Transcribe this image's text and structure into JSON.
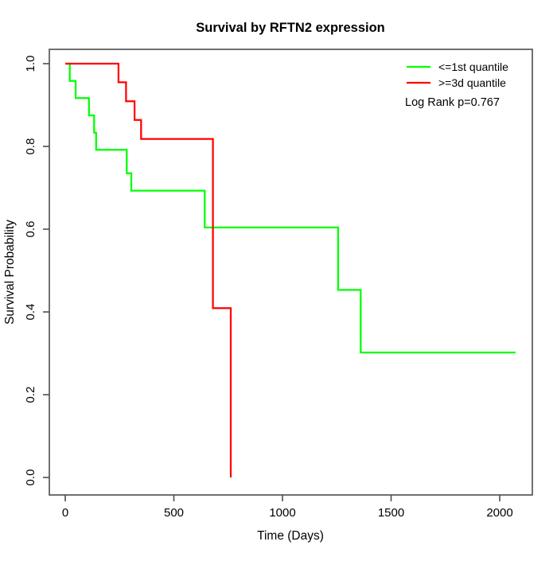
{
  "title": "Survival by RFTN2 expression",
  "chart_data": {
    "type": "line",
    "subtype": "kaplan-meier-step",
    "title": "Survival by RFTN2 expression",
    "xlabel": "Time (Days)",
    "ylabel": "Survival Probability",
    "xlim": [
      0,
      2073
    ],
    "ylim": [
      0.0,
      1.0
    ],
    "xticks": [
      0,
      500,
      1000,
      1500,
      2000
    ],
    "yticks": [
      0.0,
      0.2,
      0.4,
      0.6,
      0.8,
      1.0
    ],
    "grid": false,
    "legend_position": "top-right-inside",
    "annotation": "Log Rank p=0.767",
    "series": [
      {
        "name": "<=1st quantile",
        "color": "#00ff00",
        "points": [
          [
            0,
            1.0
          ],
          [
            21,
            0.958
          ],
          [
            48,
            0.917
          ],
          [
            109,
            0.875
          ],
          [
            133,
            0.833
          ],
          [
            142,
            0.792
          ],
          [
            283,
            0.735
          ],
          [
            304,
            0.693
          ],
          [
            642,
            0.604
          ],
          [
            1256,
            0.453
          ],
          [
            1360,
            0.302
          ],
          [
            2073,
            0.302
          ]
        ]
      },
      {
        "name": ">=3d quantile",
        "color": "#ff0000",
        "points": [
          [
            0,
            1.0
          ],
          [
            245,
            0.955
          ],
          [
            280,
            0.909
          ],
          [
            319,
            0.864
          ],
          [
            349,
            0.818
          ],
          [
            680,
            0.409
          ],
          [
            762,
            0.0
          ]
        ]
      }
    ]
  },
  "axes": {
    "x_label": "Time (Days)",
    "y_label": "Survival Probability",
    "x_tick_labels": [
      "0",
      "500",
      "1000",
      "1500",
      "2000"
    ],
    "y_tick_labels": [
      "0.0",
      "0.2",
      "0.4",
      "0.6",
      "0.8",
      "1.0"
    ]
  },
  "legend": {
    "items": [
      {
        "label": "<=1st quantile",
        "color": "#00ff00"
      },
      {
        "label": ">=3d quantile",
        "color": "#ff0000"
      }
    ],
    "annotation": "Log Rank p=0.767"
  },
  "colors": {
    "curve_low_quantile": "#00ff00",
    "curve_high_quantile": "#ff0000",
    "axis": "#4d4d4d",
    "text": "#000000",
    "background": "#ffffff"
  }
}
